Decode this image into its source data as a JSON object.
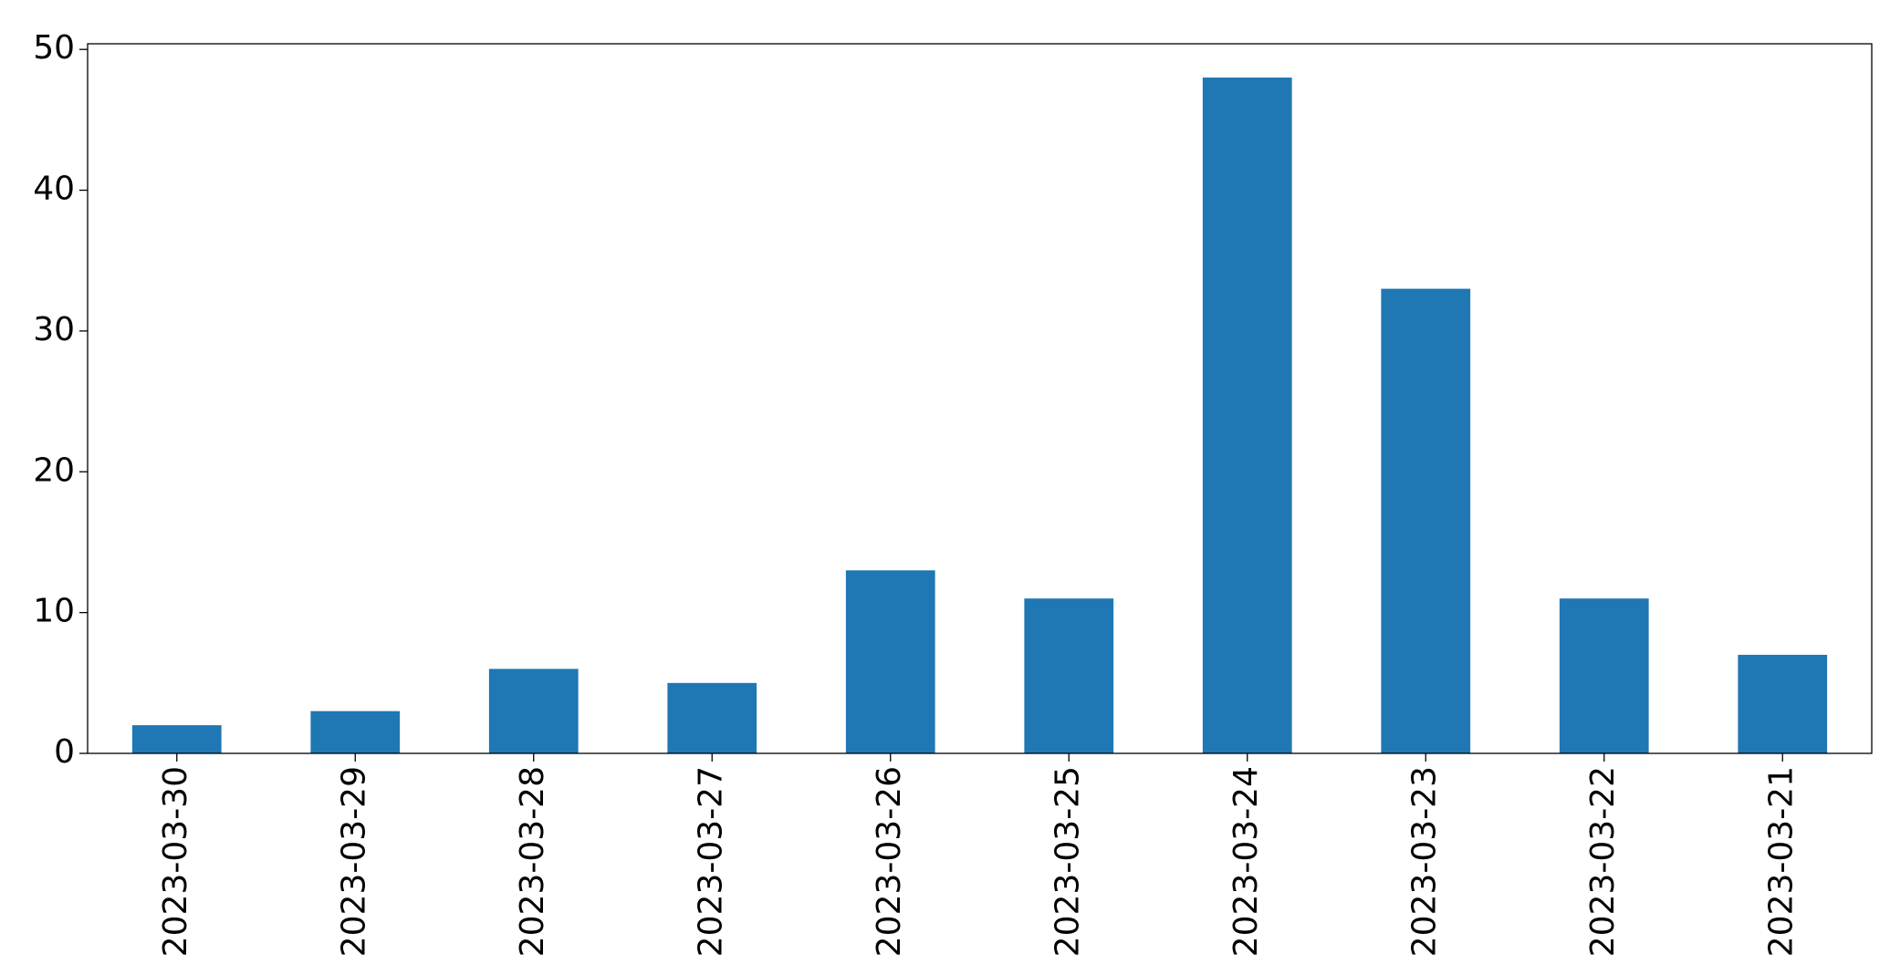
{
  "chart_data": {
    "type": "bar",
    "categories": [
      "2023-03-30",
      "2023-03-29",
      "2023-03-28",
      "2023-03-27",
      "2023-03-26",
      "2023-03-25",
      "2023-03-24",
      "2023-03-23",
      "2023-03-22",
      "2023-03-21"
    ],
    "values": [
      2,
      3,
      6,
      5,
      13,
      11,
      48,
      33,
      11,
      7
    ],
    "color": "#1f77b4",
    "ylim": [
      0,
      50.4
    ],
    "yticks": [
      0,
      10,
      20,
      30,
      40,
      50
    ],
    "grid": false
  }
}
